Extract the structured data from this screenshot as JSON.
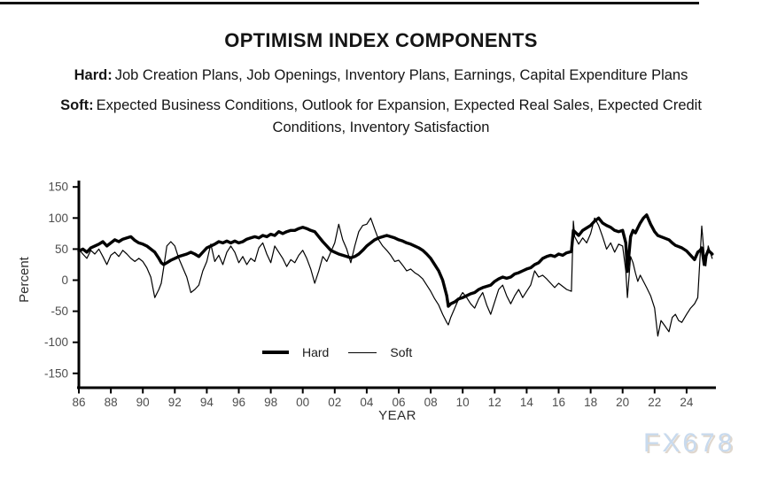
{
  "header": {
    "title": "OPTIMISM INDEX COMPONENTS",
    "hard_label": "Hard:",
    "hard_text": "Job Creation Plans, Job Openings, Inventory Plans, Earnings, Capital Expenditure Plans",
    "soft_label": "Soft:",
    "soft_text": "Expected Business Conditions, Outlook for Expansion, Expected Real Sales, Expected Credit Conditions, Inventory Satisfaction"
  },
  "watermark": {
    "text": "FX678",
    "color": "#c8daee"
  },
  "chart_data": {
    "type": "line",
    "title": "",
    "xlabel": "YEAR",
    "ylabel": "Percent",
    "grid": false,
    "line_color": "#000000",
    "axis_tick_label_color": "#4d4d4d",
    "ylim": [
      -150,
      150
    ],
    "y_ticks": [
      150,
      100,
      50,
      0,
      -50,
      -100,
      -150
    ],
    "x_tick_years": [
      1986,
      1988,
      1990,
      1992,
      1994,
      1996,
      1998,
      2000,
      2002,
      2004,
      2006,
      2008,
      2010,
      2012,
      2014,
      2016,
      2018,
      2020,
      2022,
      2024
    ],
    "x_ticks": [
      "86",
      "88",
      "90",
      "92",
      "94",
      "96",
      "98",
      "00",
      "02",
      "04",
      "06",
      "08",
      "10",
      "12",
      "14",
      "16",
      "18",
      "20",
      "22",
      "24"
    ],
    "xlim": [
      1986,
      2025.9
    ],
    "legend": [
      {
        "name": "Hard",
        "style": "thick"
      },
      {
        "name": "Soft",
        "style": "thin"
      }
    ],
    "x": [
      1986.0,
      1986.25,
      1986.5,
      1986.75,
      1987.0,
      1987.25,
      1987.5,
      1987.75,
      1988.0,
      1988.25,
      1988.5,
      1988.75,
      1989.0,
      1989.25,
      1989.5,
      1989.75,
      1990.0,
      1990.25,
      1990.5,
      1990.75,
      1991.0,
      1991.15,
      1991.3,
      1991.5,
      1991.75,
      1992.0,
      1992.25,
      1992.5,
      1992.75,
      1993.0,
      1993.25,
      1993.5,
      1993.75,
      1994.0,
      1994.25,
      1994.5,
      1994.75,
      1995.0,
      1995.25,
      1995.5,
      1995.75,
      1996.0,
      1996.25,
      1996.5,
      1996.75,
      1997.0,
      1997.25,
      1997.5,
      1997.75,
      1998.0,
      1998.25,
      1998.5,
      1998.75,
      1999.0,
      1999.25,
      1999.5,
      1999.75,
      2000.0,
      2000.25,
      2000.5,
      2000.75,
      2001.0,
      2001.25,
      2001.5,
      2001.75,
      2002.0,
      2002.25,
      2002.5,
      2002.75,
      2003.0,
      2003.25,
      2003.5,
      2003.75,
      2004.0,
      2004.25,
      2004.5,
      2004.75,
      2005.0,
      2005.25,
      2005.5,
      2005.75,
      2006.0,
      2006.25,
      2006.5,
      2006.75,
      2007.0,
      2007.25,
      2007.5,
      2007.75,
      2008.0,
      2008.25,
      2008.5,
      2008.75,
      2009.0,
      2009.1,
      2009.25,
      2009.5,
      2009.75,
      2010.0,
      2010.25,
      2010.5,
      2010.75,
      2011.0,
      2011.25,
      2011.5,
      2011.75,
      2012.0,
      2012.25,
      2012.5,
      2012.75,
      2013.0,
      2013.25,
      2013.5,
      2013.75,
      2014.0,
      2014.25,
      2014.5,
      2014.75,
      2015.0,
      2015.25,
      2015.5,
      2015.75,
      2016.0,
      2016.25,
      2016.5,
      2016.8,
      2016.92,
      2017.0,
      2017.25,
      2017.5,
      2017.75,
      2018.0,
      2018.25,
      2018.5,
      2018.75,
      2019.0,
      2019.25,
      2019.5,
      2019.75,
      2020.0,
      2020.2,
      2020.3,
      2020.5,
      2020.65,
      2020.8,
      2020.95,
      2021.1,
      2021.3,
      2021.5,
      2021.75,
      2022.0,
      2022.2,
      2022.4,
      2022.6,
      2022.9,
      2023.1,
      2023.3,
      2023.5,
      2023.7,
      2024.0,
      2024.25,
      2024.5,
      2024.7,
      2024.85,
      2024.95,
      2025.1,
      2025.2,
      2025.35,
      2025.6
    ],
    "series": [
      {
        "name": "Hard",
        "stroke_width": 3.4,
        "values": [
          47,
          50,
          45,
          52,
          55,
          58,
          62,
          55,
          60,
          65,
          62,
          66,
          68,
          70,
          64,
          60,
          58,
          55,
          50,
          45,
          35,
          28,
          25,
          28,
          32,
          35,
          38,
          40,
          42,
          45,
          42,
          38,
          45,
          52,
          55,
          58,
          62,
          60,
          63,
          60,
          63,
          60,
          62,
          66,
          68,
          70,
          68,
          72,
          70,
          74,
          72,
          78,
          75,
          78,
          80,
          80,
          83,
          85,
          83,
          80,
          78,
          70,
          62,
          55,
          48,
          45,
          42,
          40,
          38,
          36,
          38,
          42,
          48,
          55,
          60,
          65,
          68,
          70,
          72,
          70,
          68,
          65,
          63,
          60,
          58,
          55,
          52,
          48,
          42,
          35,
          25,
          15,
          0,
          -25,
          -42,
          -38,
          -35,
          -30,
          -28,
          -25,
          -22,
          -20,
          -15,
          -12,
          -10,
          -8,
          -2,
          2,
          5,
          3,
          5,
          10,
          12,
          15,
          18,
          20,
          25,
          28,
          35,
          38,
          40,
          38,
          42,
          40,
          44,
          46,
          80,
          78,
          72,
          80,
          84,
          88,
          95,
          100,
          92,
          88,
          85,
          80,
          78,
          80,
          60,
          14,
          70,
          80,
          76,
          84,
          92,
          100,
          105,
          90,
          78,
          72,
          70,
          68,
          65,
          60,
          56,
          54,
          52,
          47,
          40,
          33,
          45,
          48,
          52,
          25,
          38,
          48,
          42
        ]
      },
      {
        "name": "Soft",
        "stroke_width": 1.2,
        "values": [
          50,
          42,
          35,
          48,
          42,
          50,
          38,
          25,
          40,
          45,
          38,
          48,
          42,
          35,
          30,
          35,
          30,
          20,
          5,
          -28,
          -15,
          -5,
          20,
          55,
          62,
          55,
          35,
          20,
          5,
          -20,
          -15,
          -8,
          15,
          30,
          58,
          30,
          40,
          25,
          45,
          55,
          45,
          28,
          38,
          25,
          35,
          30,
          52,
          60,
          42,
          28,
          55,
          45,
          35,
          22,
          33,
          28,
          40,
          48,
          35,
          18,
          -5,
          15,
          38,
          30,
          45,
          60,
          90,
          65,
          50,
          28,
          55,
          78,
          88,
          90,
          100,
          82,
          65,
          55,
          48,
          40,
          30,
          32,
          24,
          15,
          18,
          12,
          8,
          2,
          -8,
          -18,
          -30,
          -40,
          -55,
          -68,
          -72,
          -60,
          -45,
          -30,
          -20,
          -28,
          -38,
          -45,
          -30,
          -20,
          -40,
          -55,
          -35,
          -15,
          -8,
          -25,
          -38,
          -25,
          -15,
          -28,
          -18,
          -8,
          15,
          5,
          8,
          2,
          -5,
          -12,
          -5,
          -10,
          -15,
          -18,
          95,
          70,
          58,
          68,
          60,
          75,
          100,
          88,
          70,
          50,
          60,
          45,
          58,
          55,
          15,
          -28,
          38,
          28,
          12,
          -2,
          8,
          -2,
          -12,
          -25,
          -45,
          -90,
          -65,
          -72,
          -83,
          -60,
          -55,
          -65,
          -68,
          -55,
          -45,
          -38,
          -28,
          40,
          87,
          40,
          23,
          55,
          35
        ]
      }
    ]
  }
}
